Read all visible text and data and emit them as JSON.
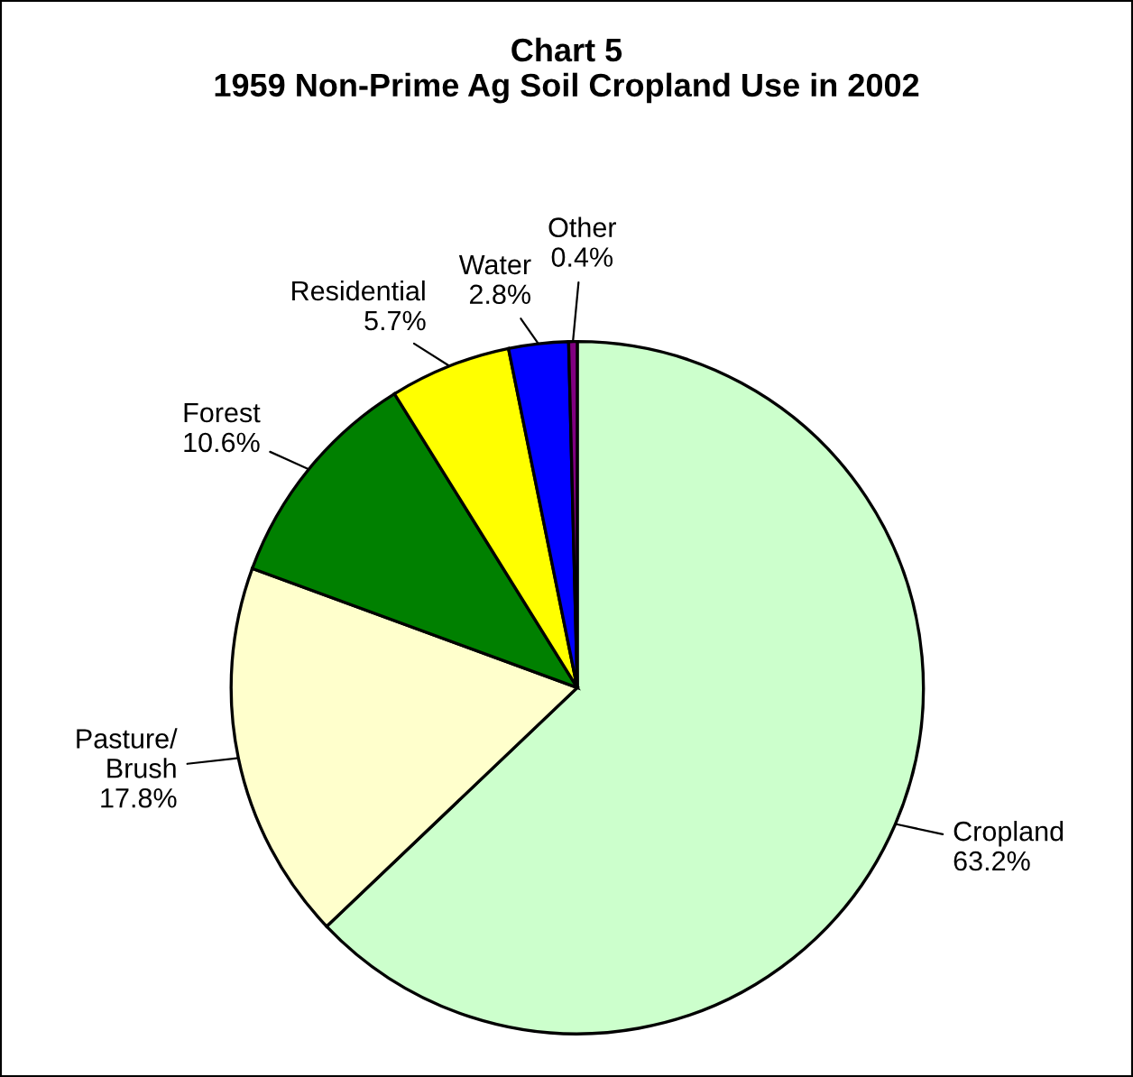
{
  "chart_data": {
    "type": "pie",
    "title": "Chart 5\n1959 Non-Prime Ag Soil Cropland Use in 2002",
    "categories": [
      "Cropland",
      "Pasture/\nBrush",
      "Forest",
      "Residential",
      "Water",
      "Other"
    ],
    "values": [
      63.2,
      17.8,
      10.6,
      5.7,
      2.8,
      0.4
    ],
    "value_labels": [
      "63.2%",
      "17.8%",
      "10.6%",
      "5.7%",
      "2.8%",
      "0.4%"
    ],
    "colors": [
      "#ccffcc",
      "#ffffcc",
      "#008000",
      "#ffff00",
      "#0000ff",
      "#800080"
    ],
    "legend": false
  }
}
